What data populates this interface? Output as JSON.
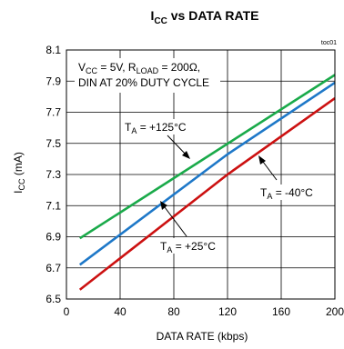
{
  "chart_data": {
    "type": "line",
    "title_main": "I",
    "title_sub": "CC",
    "title_rest": " vs DATA RATE",
    "figure_id": "toc01",
    "xlabel": "DATA RATE (kbps)",
    "ylabel_main": "I",
    "ylabel_sub": "CC",
    "ylabel_rest": " (mA)",
    "xlim": [
      0,
      200
    ],
    "ylim": [
      6.5,
      8.1
    ],
    "xticks": [
      0,
      40,
      80,
      120,
      160,
      200
    ],
    "yticks": [
      6.5,
      6.7,
      6.9,
      7.1,
      7.3,
      7.5,
      7.7,
      7.9,
      8.1
    ],
    "grid": true,
    "conditions": {
      "line1": [
        "V",
        "CC",
        " = 5V, R",
        "LOAD",
        " = 200Ω,"
      ],
      "line2": "DIN AT 20% DUTY CYCLE"
    },
    "series": [
      {
        "name": "+125°C",
        "color": "#1aaa4a",
        "x": [
          10,
          200
        ],
        "y": [
          6.89,
          7.94
        ]
      },
      {
        "name": "+25°C",
        "color": "#1e78c8",
        "x": [
          10,
          120,
          200
        ],
        "y": [
          6.72,
          7.43,
          7.89
        ]
      },
      {
        "name": "-40°C",
        "color": "#cc1111",
        "x": [
          10,
          120,
          200
        ],
        "y": [
          6.56,
          7.3,
          7.79
        ]
      }
    ],
    "annotations": [
      {
        "series": 0,
        "parts": [
          "T",
          "A",
          " = +125°C"
        ]
      },
      {
        "series": 1,
        "parts": [
          "T",
          "A",
          " = +25°C"
        ]
      },
      {
        "series": 2,
        "parts": [
          "T",
          "A",
          " = -40°C"
        ]
      }
    ]
  }
}
